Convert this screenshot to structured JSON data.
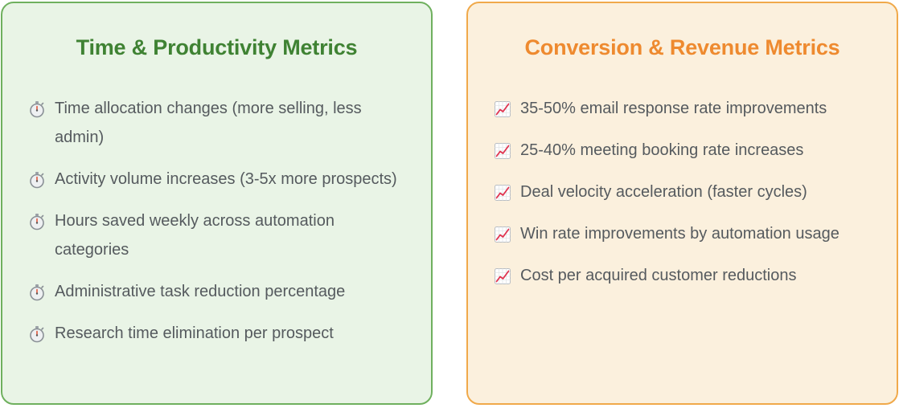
{
  "left_card": {
    "title": "Time & Productivity Metrics",
    "icon": "stopwatch-icon",
    "items": [
      "Time allocation changes (more selling, less admin)",
      "Activity volume increases (3-5x more prospects)",
      "Hours saved weekly across automation categories",
      "Administrative task reduction percentage",
      "Research time elimination per prospect"
    ]
  },
  "right_card": {
    "title": "Conversion & Revenue Metrics",
    "icon": "chart-increasing-icon",
    "items": [
      "35-50% email response rate improvements",
      "25-40% meeting booking rate increases",
      "Deal velocity acceleration (faster cycles)",
      "Win rate improvements by automation usage",
      "Cost per acquired customer reductions"
    ]
  },
  "colors": {
    "green_bg": "#e9f4e6",
    "green_border": "#6fb05e",
    "green_title": "#3f8233",
    "orange_bg": "#fbf0dd",
    "orange_border": "#f0a94a",
    "orange_title": "#ee8a2f",
    "body_text": "#555a5e"
  }
}
